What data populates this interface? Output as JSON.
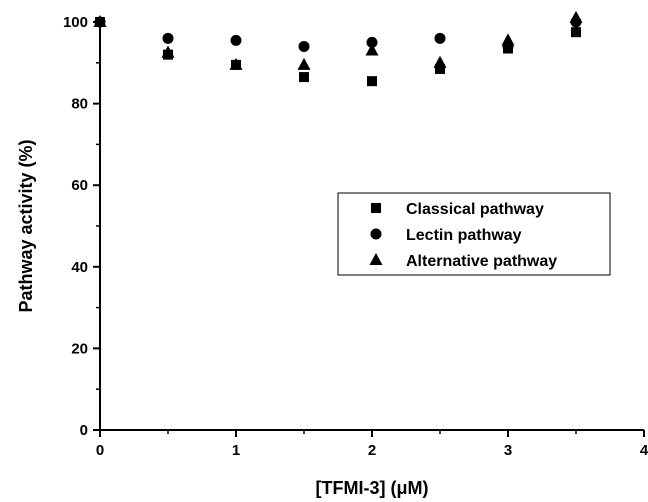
{
  "chart_data": {
    "type": "scatter",
    "title": "",
    "xlabel": "[TFMI-3] (μM)",
    "ylabel": "Pathway activity (%)",
    "xlim": [
      0,
      4
    ],
    "ylim": [
      0,
      100
    ],
    "xticks": [
      0,
      1,
      2,
      3,
      4
    ],
    "yticks": [
      0,
      20,
      40,
      60,
      80,
      100
    ],
    "x_tick_labels": [
      "0",
      "1",
      "2",
      "3",
      "4"
    ],
    "y_tick_labels": [
      "0",
      "20",
      "40",
      "60",
      "80",
      "100"
    ],
    "grid": false,
    "legend_position": "center-right",
    "series": [
      {
        "name": "Classical pathway",
        "marker": "square",
        "color": "#000000",
        "x": [
          0,
          0.5,
          1,
          1.5,
          2,
          2.5,
          3,
          3.5
        ],
        "y": [
          100,
          92,
          89.5,
          86.5,
          85.5,
          88.5,
          93.5,
          97.5
        ]
      },
      {
        "name": "Lectin pathway",
        "marker": "circle",
        "color": "#000000",
        "x": [
          0,
          0.5,
          1,
          1.5,
          2,
          2.5,
          3,
          3.5
        ],
        "y": [
          100,
          96,
          95.5,
          94,
          95,
          96,
          94,
          100
        ]
      },
      {
        "name": "Alternative pathway",
        "marker": "triangle",
        "color": "#000000",
        "x": [
          0,
          0.5,
          1,
          1.5,
          2,
          2.5,
          3,
          3.5
        ],
        "y": [
          100,
          92.5,
          89.5,
          89.5,
          93,
          90,
          95.5,
          101
        ]
      }
    ]
  }
}
